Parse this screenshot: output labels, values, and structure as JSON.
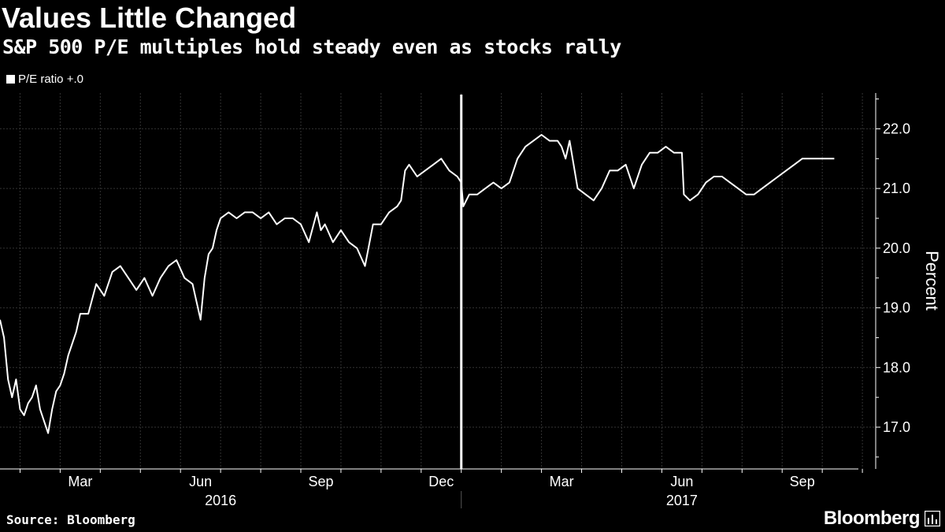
{
  "header": {
    "title": "Values Little Changed",
    "subtitle": "S&P 500 P/E multiples hold steady even as stocks rally"
  },
  "legend": {
    "label": "P/E ratio +.0"
  },
  "footer": {
    "source": "Source: Bloomberg",
    "brand": "Bloomberg"
  },
  "colors": {
    "background": "#000000",
    "line": "#ffffff",
    "grid": "#333333"
  },
  "chart_data": {
    "type": "line",
    "title": "Values Little Changed",
    "subtitle": "S&P 500 P/E multiples hold steady even as stocks rally",
    "ylabel": "Percent",
    "ylim": [
      16.3,
      22.6
    ],
    "yticks": [
      17.0,
      18.0,
      19.0,
      20.0,
      21.0,
      22.0
    ],
    "ytick_labels": [
      "17.0",
      "18.0",
      "19.0",
      "20.0",
      "21.0",
      "22.0"
    ],
    "xlim": [
      0,
      21.4
    ],
    "xticks": [
      {
        "pos": 2.0,
        "label": "Mar"
      },
      {
        "pos": 5.0,
        "label": "Jun"
      },
      {
        "pos": 8.0,
        "label": "Sep"
      },
      {
        "pos": 11.0,
        "label": "Dec"
      },
      {
        "pos": 14.0,
        "label": "Mar"
      },
      {
        "pos": 17.0,
        "label": "Jun"
      },
      {
        "pos": 20.0,
        "label": "Sep"
      }
    ],
    "year_labels": [
      {
        "pos": 5.5,
        "label": "2016"
      },
      {
        "pos": 17.0,
        "label": "2017"
      }
    ],
    "year_divider": 11.5,
    "annotation": {
      "type": "vertical-line",
      "x": 11.5
    },
    "legend": [
      "P/E ratio +.0"
    ],
    "series": [
      {
        "name": "P/E ratio",
        "x": [
          0.0,
          0.1,
          0.2,
          0.3,
          0.4,
          0.5,
          0.6,
          0.7,
          0.8,
          0.9,
          1.0,
          1.1,
          1.2,
          1.3,
          1.4,
          1.5,
          1.6,
          1.7,
          1.8,
          1.9,
          2.0,
          2.2,
          2.4,
          2.6,
          2.8,
          3.0,
          3.2,
          3.4,
          3.6,
          3.8,
          4.0,
          4.2,
          4.4,
          4.6,
          4.8,
          5.0,
          5.1,
          5.2,
          5.3,
          5.4,
          5.5,
          5.7,
          5.9,
          6.1,
          6.3,
          6.5,
          6.7,
          6.9,
          7.1,
          7.3,
          7.5,
          7.7,
          7.9,
          8.0,
          8.1,
          8.3,
          8.5,
          8.7,
          8.9,
          9.1,
          9.3,
          9.5,
          9.7,
          9.9,
          10.0,
          10.1,
          10.2,
          10.4,
          10.6,
          10.8,
          11.0,
          11.2,
          11.4,
          11.5,
          11.55,
          11.7,
          11.9,
          12.1,
          12.3,
          12.5,
          12.7,
          12.9,
          13.1,
          13.3,
          13.5,
          13.7,
          13.9,
          14.0,
          14.1,
          14.2,
          14.4,
          14.6,
          14.8,
          15.0,
          15.2,
          15.4,
          15.6,
          15.8,
          16.0,
          16.2,
          16.4,
          16.6,
          16.8,
          17.0,
          17.05,
          17.2,
          17.4,
          17.6,
          17.8,
          18.0,
          18.2,
          18.4,
          18.6,
          18.8,
          19.0,
          19.2,
          19.4,
          19.6,
          19.8,
          20.0,
          20.2,
          20.4,
          20.6,
          20.8
        ],
        "values": [
          18.8,
          18.5,
          17.8,
          17.5,
          17.8,
          17.3,
          17.2,
          17.4,
          17.5,
          17.7,
          17.3,
          17.1,
          16.9,
          17.3,
          17.6,
          17.7,
          17.9,
          18.2,
          18.4,
          18.6,
          18.9,
          18.9,
          19.4,
          19.2,
          19.6,
          19.7,
          19.5,
          19.3,
          19.5,
          19.2,
          19.5,
          19.7,
          19.8,
          19.5,
          19.4,
          18.8,
          19.5,
          19.9,
          20.0,
          20.3,
          20.5,
          20.6,
          20.5,
          20.6,
          20.6,
          20.5,
          20.6,
          20.4,
          20.5,
          20.5,
          20.4,
          20.1,
          20.6,
          20.3,
          20.4,
          20.1,
          20.3,
          20.1,
          20.0,
          19.7,
          20.4,
          20.4,
          20.6,
          20.7,
          20.8,
          21.3,
          21.4,
          21.2,
          21.3,
          21.4,
          21.5,
          21.3,
          21.2,
          21.1,
          20.7,
          20.9,
          20.9,
          21.0,
          21.1,
          21.0,
          21.1,
          21.5,
          21.7,
          21.8,
          21.9,
          21.8,
          21.8,
          21.7,
          21.5,
          21.8,
          21.0,
          20.9,
          20.8,
          21.0,
          21.3,
          21.3,
          21.4,
          21.0,
          21.4,
          21.6,
          21.6,
          21.7,
          21.6,
          21.6,
          20.9,
          20.8,
          20.9,
          21.1,
          21.2,
          21.2,
          21.1,
          21.0,
          20.9,
          20.9,
          21.0,
          21.1,
          21.2,
          21.3,
          21.4,
          21.5,
          21.5,
          21.5,
          21.5,
          21.5
        ]
      }
    ]
  }
}
